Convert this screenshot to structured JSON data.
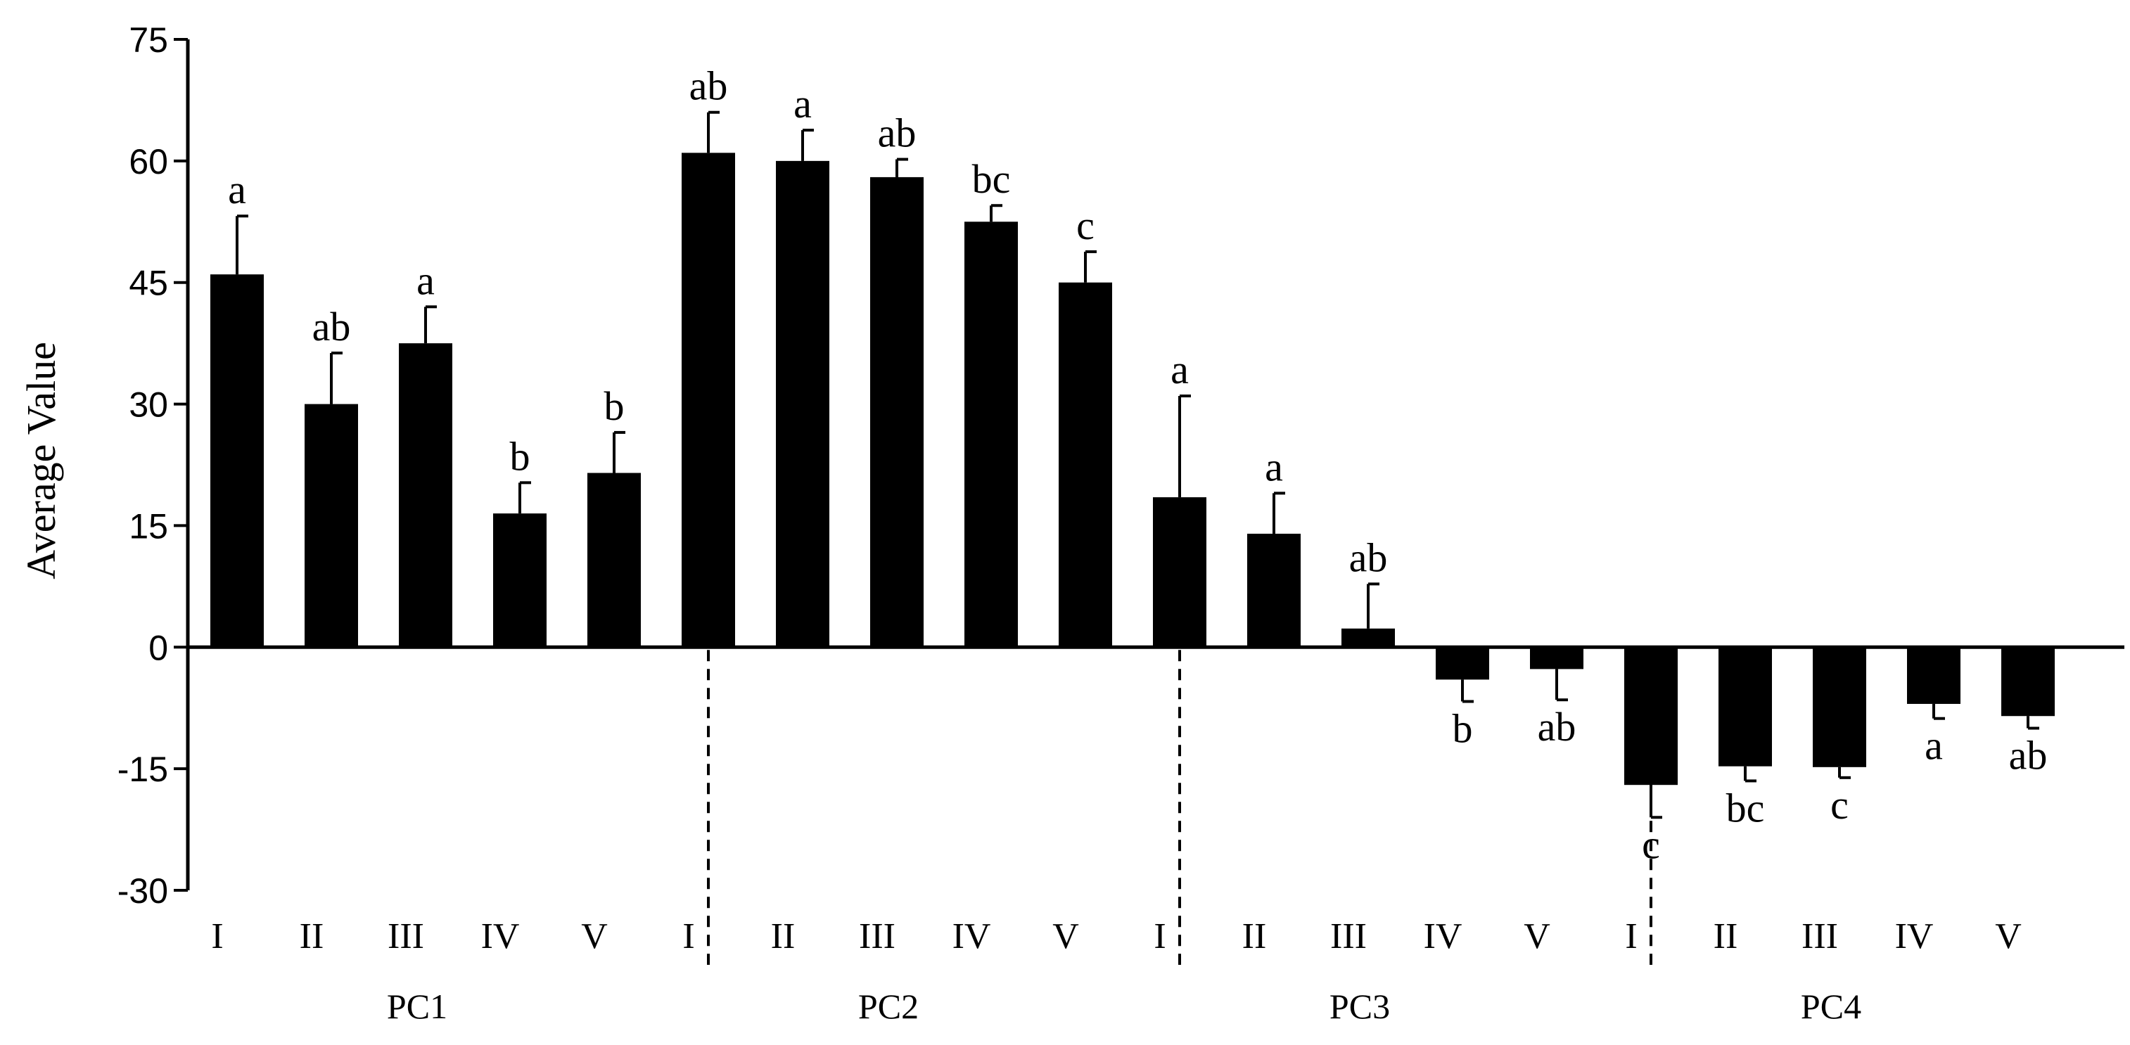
{
  "chart_data": {
    "type": "bar",
    "xlabel": "",
    "ylabel": "Average Value",
    "ylim": [
      -30,
      75
    ],
    "yticks": [
      75,
      60,
      45,
      30,
      15,
      0,
      -15,
      -30
    ],
    "grid": false,
    "groups": [
      {
        "name": "PC1",
        "categories": [
          "I",
          "II",
          "III",
          "IV",
          "V"
        ],
        "values": [
          46,
          30,
          37.5,
          16.5,
          21.5
        ],
        "errors": [
          7.2,
          6.3,
          4.5,
          3.8,
          5
        ],
        "letters": [
          "a",
          "ab",
          "a",
          "b",
          "b"
        ]
      },
      {
        "name": "PC2",
        "categories": [
          "I",
          "II",
          "III",
          "IV",
          "V"
        ],
        "values": [
          61,
          60,
          58,
          52.5,
          45
        ],
        "errors": [
          5,
          3.8,
          2.2,
          2,
          3.8
        ],
        "letters": [
          "ab",
          "a",
          "ab",
          "bc",
          "c"
        ]
      },
      {
        "name": "PC3",
        "categories": [
          "I",
          "II",
          "III",
          "IV",
          "V"
        ],
        "values": [
          18.5,
          14,
          2.3,
          -4,
          -2.7
        ],
        "errors": [
          12.5,
          5,
          5.5,
          2.7,
          3.8
        ],
        "letters": [
          "a",
          "a",
          "ab",
          "b",
          "ab"
        ]
      },
      {
        "name": "PC4",
        "categories": [
          "I",
          "II",
          "III",
          "IV",
          "V"
        ],
        "values": [
          -17,
          -14.7,
          -14.8,
          -7,
          -8.5
        ],
        "errors": [
          4,
          1.8,
          1.3,
          1.8,
          1.5
        ],
        "letters": [
          "c",
          "bc",
          "c",
          "a",
          "ab"
        ]
      }
    ]
  }
}
